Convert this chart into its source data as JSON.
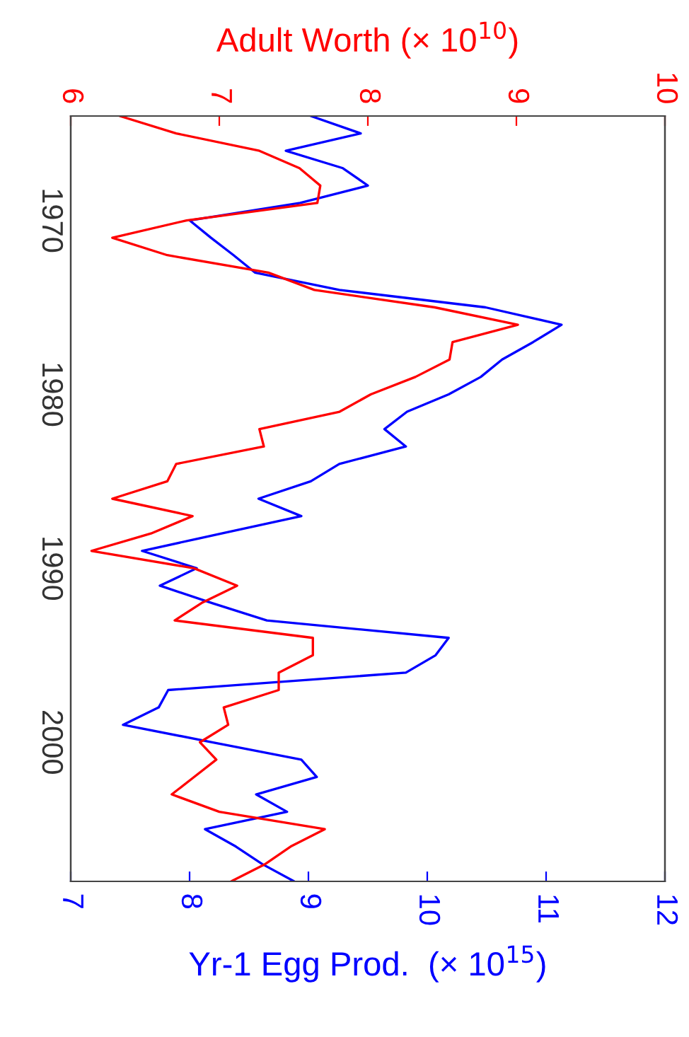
{
  "chart_data": {
    "type": "line",
    "orientation": "horizontal",
    "x": [
      1964,
      1965,
      1966,
      1967,
      1968,
      1969,
      1970,
      1971,
      1972,
      1973,
      1974,
      1975,
      1976,
      1977,
      1978,
      1979,
      1980,
      1981,
      1982,
      1983,
      1984,
      1985,
      1986,
      1987,
      1988,
      1989,
      1990,
      1991,
      1992,
      1993,
      1994,
      1995,
      1996,
      1997,
      1998,
      1999,
      2000,
      2001,
      2002,
      2003,
      2004,
      2005,
      2006,
      2007,
      2008
    ],
    "series": [
      {
        "color": "#0000ff",
        "values": [
          9.02,
          9.44,
          8.81,
          9.29,
          9.5,
          8.93,
          8.0,
          8.18,
          8.37,
          8.55,
          9.26,
          10.49,
          11.13,
          10.89,
          10.63,
          10.45,
          10.18,
          9.83,
          9.64,
          9.82,
          9.26,
          9.02,
          8.58,
          8.94,
          8.27,
          7.6,
          8.06,
          7.75,
          8.19,
          8.65,
          10.18,
          10.07,
          9.82,
          7.82,
          7.74,
          7.44,
          8.19,
          8.94,
          9.07,
          8.56,
          8.82,
          8.13,
          8.39,
          8.61,
          8.88
        ]
      },
      {
        "color": "#ff0000",
        "axis": "x2",
        "values": [
          6.33,
          6.71,
          7.27,
          7.54,
          7.68,
          7.66,
          6.78,
          6.28,
          6.65,
          7.33,
          7.64,
          8.45,
          9.01,
          8.57,
          8.55,
          8.32,
          8.02,
          7.81,
          7.27,
          7.3,
          6.71,
          6.65,
          6.28,
          6.82,
          6.54,
          6.14,
          6.83,
          7.12,
          6.88,
          6.7,
          7.63,
          7.63,
          7.4,
          7.4,
          7.03,
          7.06,
          6.87,
          6.98,
          6.83,
          6.68,
          7.0,
          7.71,
          7.48,
          7.31,
          7.08
        ]
      }
    ],
    "xlabel": "Yr-1 Egg Prod.  (× 10$^{15}$)",
    "x2label": "Adult Worth (× 10$^{10}$)",
    "xlim": [
      7,
      12
    ],
    "xticks": [
      7,
      8,
      9,
      10,
      11,
      12
    ],
    "x2lim": [
      6,
      10
    ],
    "x2ticks": [
      6,
      7,
      8,
      9,
      10
    ],
    "ylim": [
      2008,
      1964
    ],
    "yticks": [
      1970,
      1980,
      1990,
      2000
    ],
    "grid": false,
    "legend": false
  }
}
